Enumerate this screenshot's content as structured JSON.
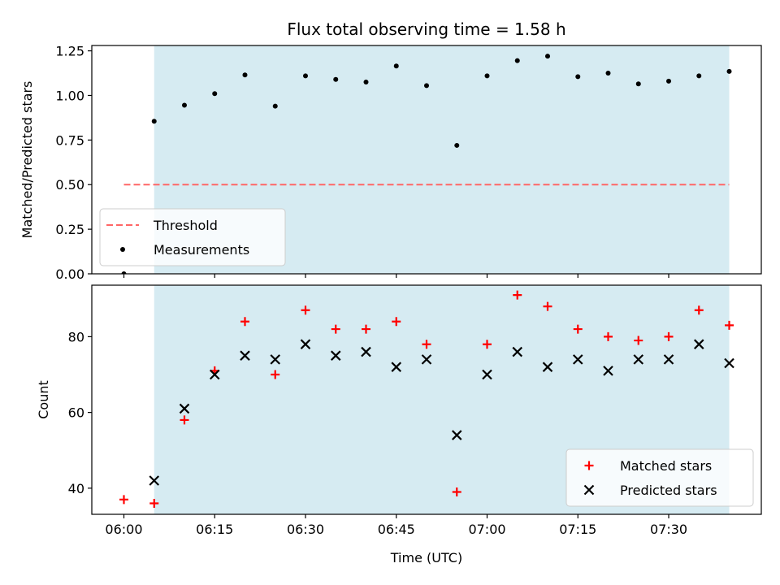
{
  "chart_data": {
    "title": "Flux total observing time = 1.58 h",
    "xlabel": "Time (UTC)",
    "x_tick_labels": [
      "06:00",
      "06:15",
      "06:30",
      "06:45",
      "07:00",
      "07:15",
      "07:30"
    ],
    "x_tick_minutes": [
      0,
      15,
      30,
      45,
      60,
      75,
      90
    ],
    "xlim_minutes": [
      -5.3,
      105.3
    ],
    "shaded_interval_minutes": [
      5,
      100
    ],
    "colors": {
      "shade": "#add8e6",
      "threshold": "#ff6666",
      "measurement": "#000000",
      "matched": "#ff0000",
      "predicted": "#000000"
    },
    "panels": [
      {
        "type": "scatter",
        "ylabel": "Matched/Predicted stars",
        "ylim": [
          0,
          1.28
        ],
        "y_ticks": [
          0.0,
          0.25,
          0.5,
          0.75,
          1.0,
          1.25
        ],
        "y_tick_labels": [
          "0.00",
          "0.25",
          "0.50",
          "0.75",
          "1.00",
          "1.25"
        ],
        "legend_position": "lower-left",
        "series": [
          {
            "name": "Threshold",
            "kind": "dashed-line",
            "x": [
              0,
              100
            ],
            "y": [
              0.5,
              0.5
            ]
          },
          {
            "name": "Measurements",
            "kind": "dot",
            "x": [
              0,
              5,
              10,
              15,
              20,
              25,
              30,
              35,
              40,
              45,
              50,
              55,
              60,
              65,
              70,
              75,
              80,
              85,
              90,
              95,
              100
            ],
            "y": [
              0.0,
              0.855,
              0.945,
              1.01,
              1.115,
              0.94,
              1.11,
              1.09,
              1.075,
              1.165,
              1.055,
              0.72,
              1.11,
              1.195,
              1.22,
              1.105,
              1.125,
              1.065,
              1.08,
              1.11,
              1.135
            ]
          }
        ]
      },
      {
        "type": "scatter",
        "ylabel": "Count",
        "ylim": [
          33.1,
          93.6
        ],
        "y_ticks": [
          40,
          60,
          80
        ],
        "y_tick_labels": [
          "40",
          "60",
          "80"
        ],
        "legend_position": "lower-right",
        "series": [
          {
            "name": "Matched stars",
            "kind": "plus",
            "x": [
              0,
              5,
              10,
              15,
              20,
              25,
              30,
              35,
              40,
              45,
              50,
              55,
              60,
              65,
              70,
              75,
              80,
              85,
              90,
              95,
              100
            ],
            "y": [
              37,
              36,
              58,
              71,
              84,
              70,
              87,
              82,
              82,
              84,
              78,
              39,
              78,
              91,
              88,
              82,
              80,
              79,
              80,
              87,
              83
            ]
          },
          {
            "name": "Predicted stars",
            "kind": "x",
            "x": [
              5,
              10,
              15,
              20,
              25,
              30,
              35,
              40,
              45,
              50,
              55,
              60,
              65,
              70,
              75,
              80,
              85,
              90,
              95,
              100
            ],
            "y": [
              42,
              61,
              70,
              75,
              74,
              78,
              75,
              76,
              72,
              74,
              54,
              70,
              76,
              72,
              74,
              71,
              74,
              74,
              78,
              73
            ]
          }
        ]
      }
    ]
  }
}
